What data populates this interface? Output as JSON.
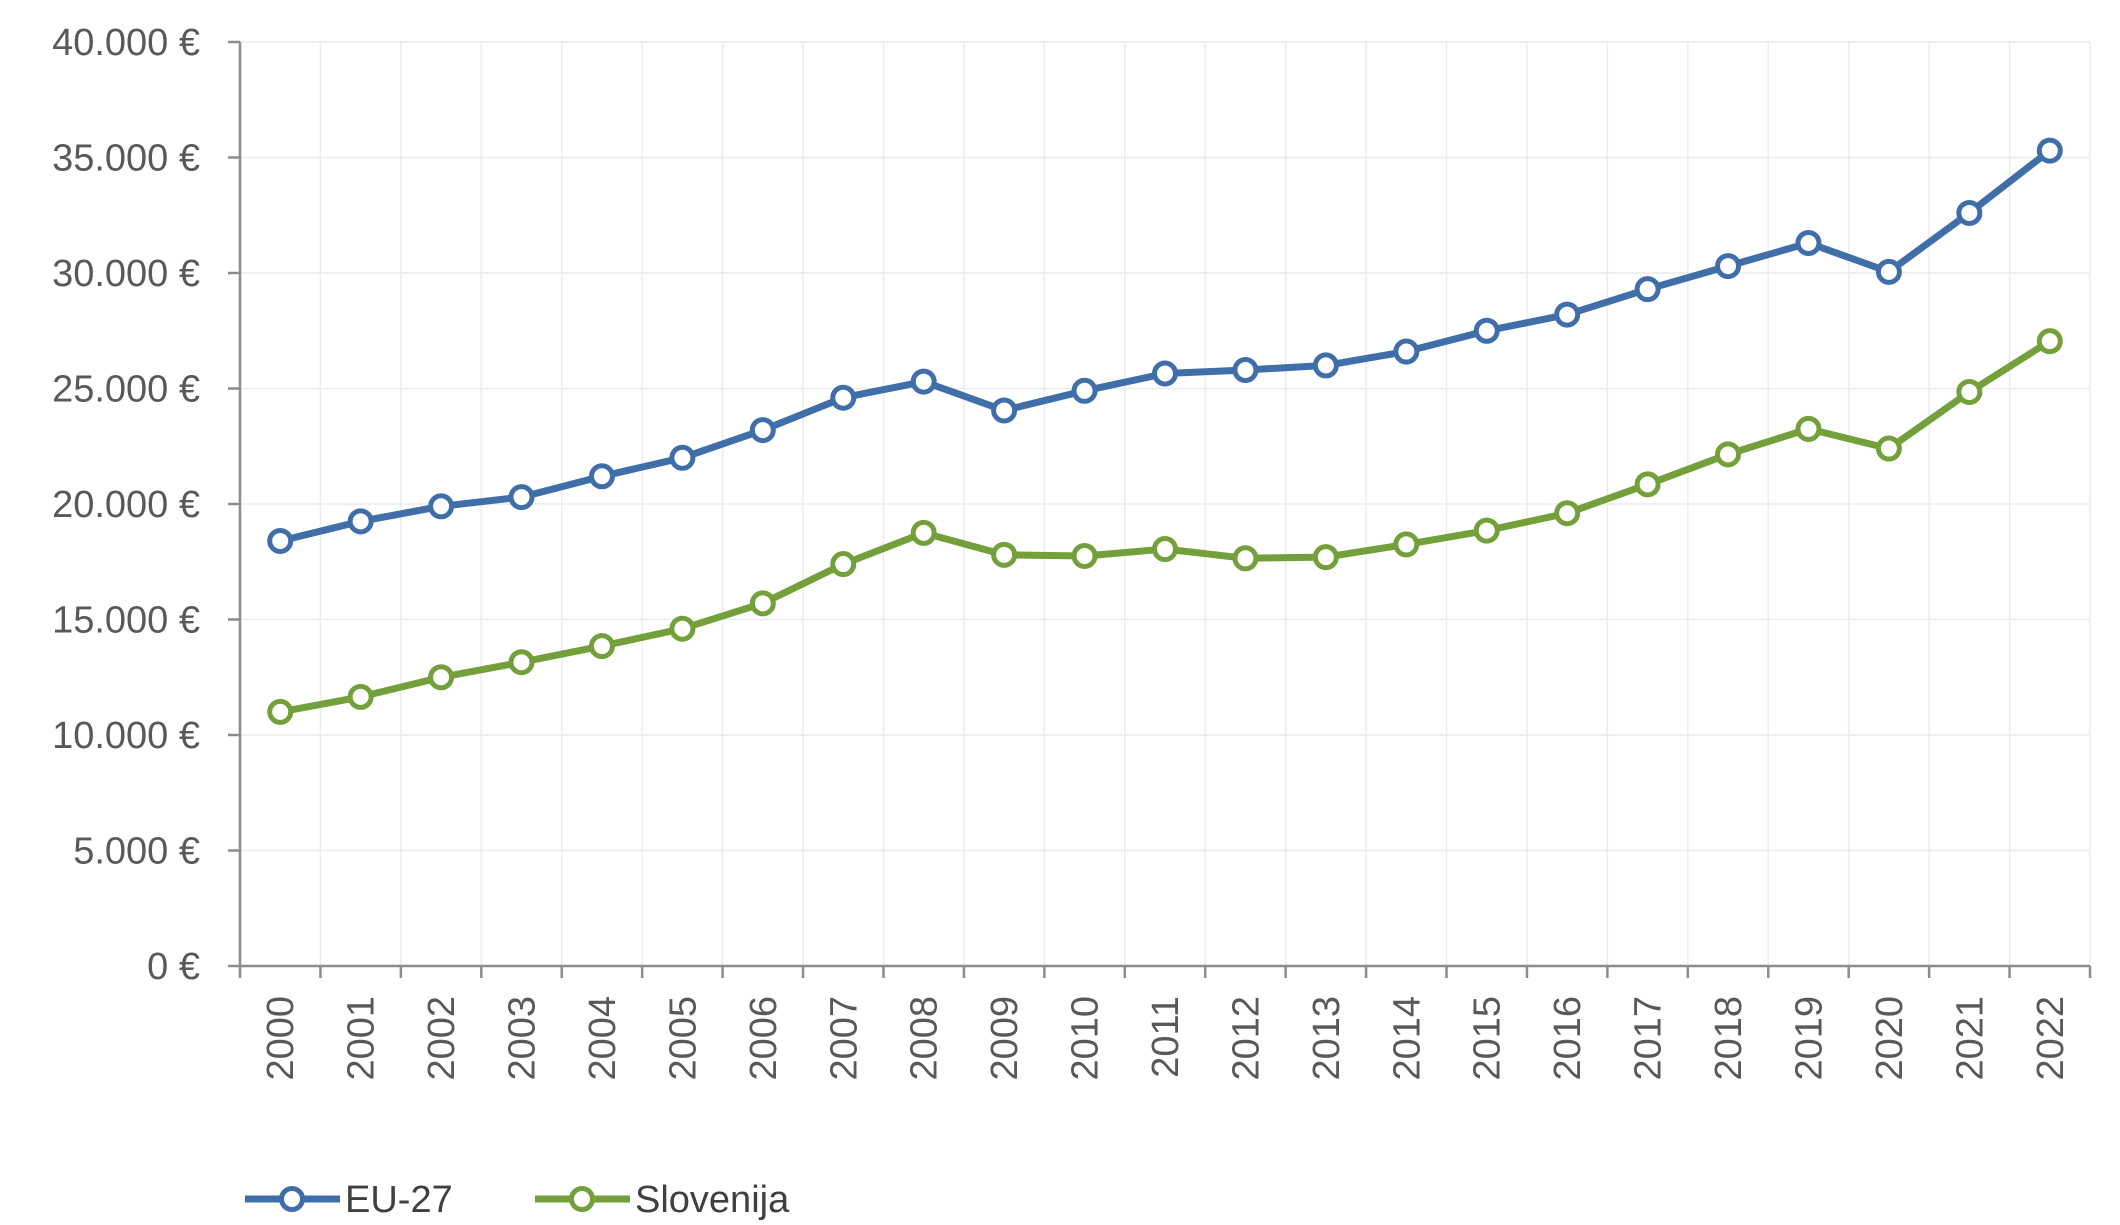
{
  "chart_data": {
    "type": "line",
    "title": "",
    "xlabel": "",
    "ylabel": "",
    "categories": [
      "2000",
      "2001",
      "2002",
      "2003",
      "2004",
      "2005",
      "2006",
      "2007",
      "2008",
      "2009",
      "2010",
      "2011",
      "2012",
      "2013",
      "2014",
      "2015",
      "2016",
      "2017",
      "2018",
      "2019",
      "2020",
      "2021",
      "2022"
    ],
    "ylim": [
      0,
      40000
    ],
    "yticks": [
      0,
      5000,
      10000,
      15000,
      20000,
      25000,
      30000,
      35000,
      40000
    ],
    "ytick_labels": [
      "0 €",
      "5.000 €",
      "10.000 €",
      "15.000 €",
      "20.000 €",
      "25.000 €",
      "30.000 €",
      "35.000 €",
      "40.000 €"
    ],
    "grid": true,
    "legend_position": "bottom-left",
    "series": [
      {
        "name": "EU-27",
        "color": "#3f6ea8",
        "values": [
          18400,
          19250,
          19900,
          20300,
          21200,
          22000,
          23200,
          24600,
          25300,
          24050,
          24900,
          25650,
          25800,
          26000,
          26600,
          27500,
          28200,
          29300,
          30300,
          31300,
          30050,
          32600,
          35300
        ]
      },
      {
        "name": "Slovenija",
        "color": "#73a03a",
        "values": [
          11000,
          11650,
          12500,
          13150,
          13850,
          14600,
          15700,
          17400,
          18750,
          17800,
          17750,
          18050,
          17650,
          17700,
          18250,
          18850,
          19600,
          20850,
          22150,
          23250,
          22400,
          24850,
          27050
        ]
      }
    ]
  }
}
